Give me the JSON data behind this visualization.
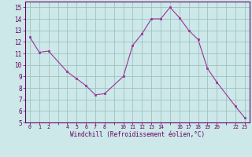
{
  "xlabel": "Windchill (Refroidissement éolien,°C)",
  "x": [
    0,
    1,
    2,
    4,
    5,
    6,
    7,
    8,
    10,
    11,
    12,
    13,
    14,
    15,
    16,
    17,
    18,
    19,
    20,
    22,
    23
  ],
  "y": [
    12.4,
    11.1,
    11.2,
    9.4,
    8.8,
    8.2,
    7.4,
    7.5,
    9.0,
    11.7,
    12.7,
    14.0,
    14.0,
    15.0,
    14.1,
    13.0,
    12.2,
    9.7,
    8.5,
    6.4,
    5.4
  ],
  "line_color": "#993399",
  "marker_color": "#993399",
  "bg_color": "#cce8e8",
  "grid_color": "#99bbbb",
  "axis_color": "#660066",
  "label_color": "#660066",
  "xlim": [
    -0.5,
    23.5
  ],
  "ylim": [
    5,
    15.5
  ],
  "yticks": [
    5,
    6,
    7,
    8,
    9,
    10,
    11,
    12,
    13,
    14,
    15
  ],
  "xtick_positions": [
    0,
    1,
    2,
    3,
    4,
    5,
    6,
    7,
    8,
    9,
    10,
    11,
    12,
    13,
    14,
    15,
    16,
    17,
    18,
    19,
    20,
    21,
    22,
    23
  ],
  "xtick_labels": [
    "0",
    "1",
    "2",
    "",
    "4",
    "5",
    "6",
    "7",
    "8",
    "",
    "10",
    "11",
    "12",
    "13",
    "14",
    "",
    "16",
    "17",
    "18",
    "19",
    "20",
    "",
    "22",
    "23"
  ]
}
